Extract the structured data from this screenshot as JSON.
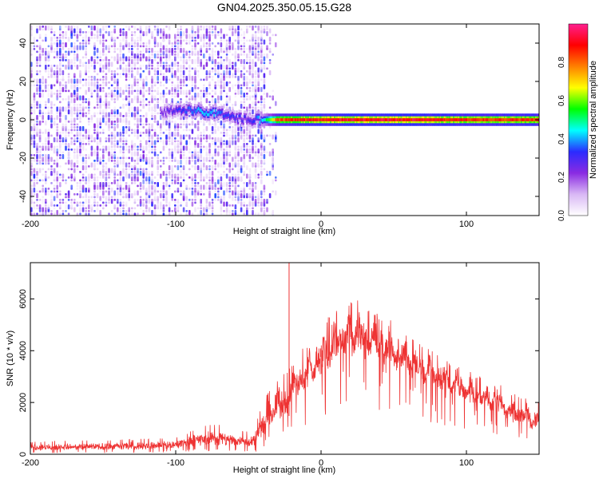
{
  "title": "GN04.2025.350.05.15.G28",
  "chart_data": [
    {
      "type": "heatmap",
      "name": "spectrogram",
      "xlabel": "Height of straight line (km)",
      "ylabel": "Frequency (Hz)",
      "xlim": [
        -200,
        150
      ],
      "ylim": [
        -50,
        50
      ],
      "xticks": [
        -200,
        -100,
        0,
        100
      ],
      "yticks": [
        -40,
        -20,
        0,
        20,
        40
      ],
      "noise_region_x": [
        -200,
        -38
      ],
      "signal_band": {
        "x_start": -110,
        "x_end": 150,
        "frequency_hz": [
          [
            -110,
            4
          ],
          [
            -100,
            5
          ],
          [
            -90,
            5
          ],
          [
            -80,
            4
          ],
          [
            -70,
            3
          ],
          [
            -60,
            1
          ],
          [
            -50,
            0
          ],
          [
            -40,
            0
          ],
          [
            -30,
            0
          ],
          [
            0,
            0
          ],
          [
            150,
            0
          ]
        ],
        "amplitude": [
          [
            -110,
            0.25
          ],
          [
            -95,
            0.35
          ],
          [
            -80,
            0.45
          ],
          [
            -65,
            0.35
          ],
          [
            -50,
            0.3
          ],
          [
            -40,
            0.45
          ],
          [
            -30,
            0.85
          ],
          [
            -10,
            0.9
          ],
          [
            20,
            0.95
          ],
          [
            60,
            0.95
          ],
          [
            100,
            0.9
          ],
          [
            150,
            0.9
          ]
        ]
      },
      "colorbar": {
        "label": "Normalized spectral amplitude",
        "range": [
          0,
          1
        ],
        "ticks": [
          0.0,
          0.2,
          0.4,
          0.6,
          0.8
        ],
        "tick_labels": [
          "0.0",
          "0.2",
          "0.4",
          "0.6",
          "0.8"
        ],
        "colormap": [
          "#ffffff",
          "#d9b8f5",
          "#8a2be2",
          "#2b2bff",
          "#00ffff",
          "#00ff00",
          "#ffff00",
          "#ff8000",
          "#ff0000",
          "#ff1f8f"
        ]
      }
    },
    {
      "type": "line",
      "name": "snr",
      "xlabel": "Height of straight line (km)",
      "ylabel": "SNR (10 * v/v)",
      "xlim": [
        -200,
        150
      ],
      "ylim": [
        0,
        7400
      ],
      "xticks": [
        -200,
        -100,
        0,
        100
      ],
      "yticks": [
        0,
        2000,
        4000,
        6000
      ],
      "color": "#ee3333",
      "spike": {
        "x": -22,
        "y": 7400
      },
      "envelope": [
        {
          "x": -200,
          "lo": 80,
          "hi": 500
        },
        {
          "x": -150,
          "lo": 100,
          "hi": 550
        },
        {
          "x": -120,
          "lo": 120,
          "hi": 600
        },
        {
          "x": -100,
          "lo": 150,
          "hi": 650
        },
        {
          "x": -90,
          "lo": 200,
          "hi": 900
        },
        {
          "x": -80,
          "lo": 200,
          "hi": 1100
        },
        {
          "x": -70,
          "lo": 200,
          "hi": 1200
        },
        {
          "x": -60,
          "lo": 180,
          "hi": 1000
        },
        {
          "x": -50,
          "lo": 150,
          "hi": 900
        },
        {
          "x": -45,
          "lo": 200,
          "hi": 1200
        },
        {
          "x": -40,
          "lo": 400,
          "hi": 2000
        },
        {
          "x": -35,
          "lo": 800,
          "hi": 2600
        },
        {
          "x": -30,
          "lo": 1200,
          "hi": 3000
        },
        {
          "x": -25,
          "lo": 1000,
          "hi": 3200
        },
        {
          "x": -20,
          "lo": 1800,
          "hi": 3500
        },
        {
          "x": -15,
          "lo": 2000,
          "hi": 4000
        },
        {
          "x": -10,
          "lo": 2200,
          "hi": 4300
        },
        {
          "x": -5,
          "lo": 2500,
          "hi": 4700
        },
        {
          "x": 0,
          "lo": 2800,
          "hi": 5000
        },
        {
          "x": 5,
          "lo": 3000,
          "hi": 5300
        },
        {
          "x": 10,
          "lo": 3200,
          "hi": 5600
        },
        {
          "x": 15,
          "lo": 3400,
          "hi": 5900
        },
        {
          "x": 20,
          "lo": 3500,
          "hi": 6000
        },
        {
          "x": 25,
          "lo": 3500,
          "hi": 6200
        },
        {
          "x": 30,
          "lo": 3400,
          "hi": 5600
        },
        {
          "x": 40,
          "lo": 3300,
          "hi": 5400
        },
        {
          "x": 50,
          "lo": 3000,
          "hi": 5200
        },
        {
          "x": 60,
          "lo": 2800,
          "hi": 4800
        },
        {
          "x": 70,
          "lo": 2500,
          "hi": 4200
        },
        {
          "x": 80,
          "lo": 2300,
          "hi": 3900
        },
        {
          "x": 90,
          "lo": 2100,
          "hi": 3500
        },
        {
          "x": 100,
          "lo": 1900,
          "hi": 3200
        },
        {
          "x": 110,
          "lo": 1600,
          "hi": 3000
        },
        {
          "x": 120,
          "lo": 1400,
          "hi": 2800
        },
        {
          "x": 130,
          "lo": 1100,
          "hi": 2500
        },
        {
          "x": 140,
          "lo": 900,
          "hi": 2200
        },
        {
          "x": 150,
          "lo": 700,
          "hi": 2000
        }
      ]
    }
  ]
}
